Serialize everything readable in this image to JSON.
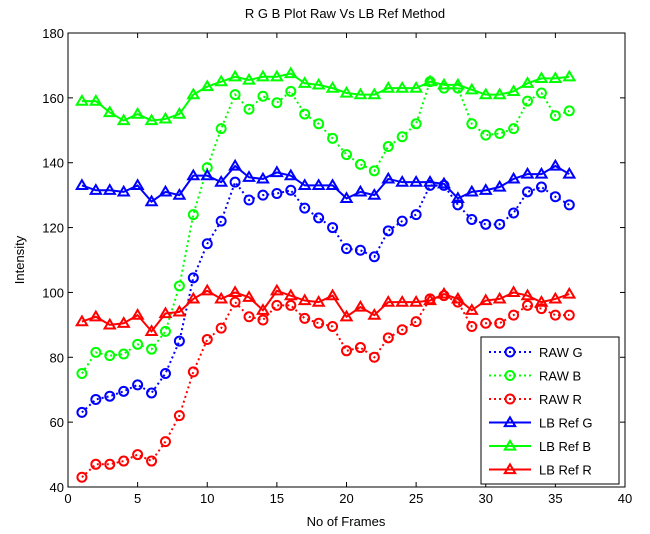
{
  "chart_data": {
    "type": "line",
    "title": "R G B Plot Raw Vs LB Ref Method",
    "xlabel": "No of Frames",
    "ylabel": "Intensity",
    "xlim": [
      0,
      40
    ],
    "ylim": [
      40,
      180
    ],
    "xticks": [
      0,
      5,
      10,
      15,
      20,
      25,
      30,
      35,
      40
    ],
    "yticks": [
      40,
      60,
      80,
      100,
      120,
      140,
      160,
      180
    ],
    "grid": false,
    "legend_position": "bottom-right",
    "x": [
      1,
      2,
      3,
      4,
      5,
      6,
      7,
      8,
      9,
      10,
      11,
      12,
      13,
      14,
      15,
      16,
      17,
      18,
      19,
      20,
      21,
      22,
      23,
      24,
      25,
      26,
      27,
      28,
      29,
      30,
      31,
      32,
      33,
      34,
      35,
      36
    ],
    "series": [
      {
        "name": "RAW G",
        "color": "#0000ff",
        "style": "dotted",
        "marker": "circle",
        "values": [
          63,
          67,
          68,
          69.5,
          71.5,
          69,
          75,
          85,
          104.5,
          115,
          122,
          134,
          128.5,
          130,
          130.5,
          131.5,
          126,
          123,
          120,
          113.5,
          113,
          111,
          119,
          122,
          124,
          133,
          133,
          127,
          122.5,
          121,
          121,
          124.5,
          131,
          132.5,
          129.5,
          127
        ]
      },
      {
        "name": "RAW B",
        "color": "#00ff00",
        "style": "dotted",
        "marker": "circle",
        "values": [
          75,
          81.5,
          80.5,
          81,
          84,
          82.5,
          88,
          102,
          124,
          138.5,
          150.5,
          161,
          156.5,
          160.5,
          158.5,
          162,
          155,
          152,
          147.5,
          142.5,
          139.5,
          137.5,
          145,
          148,
          152,
          165,
          163,
          163,
          152,
          148.5,
          149,
          150.5,
          159,
          161.5,
          154.5,
          156
        ]
      },
      {
        "name": "RAW R",
        "color": "#ff0000",
        "style": "dotted",
        "marker": "circle",
        "values": [
          43,
          47,
          47,
          48,
          50,
          48,
          54,
          62,
          75.5,
          85.5,
          89,
          97,
          92.5,
          91.5,
          96,
          96,
          92,
          90.5,
          89.5,
          82,
          83,
          80,
          86,
          88.5,
          91,
          98,
          99,
          97,
          89.5,
          90.5,
          90.5,
          93,
          96,
          95,
          93,
          93
        ]
      },
      {
        "name": "LB Ref G",
        "color": "#0000ff",
        "style": "solid",
        "marker": "triangle",
        "values": [
          133,
          131.5,
          131.5,
          131,
          133,
          128,
          131,
          130,
          136,
          136,
          134,
          139,
          135.5,
          135,
          137,
          136,
          133,
          133,
          133,
          129,
          131,
          130,
          135,
          134,
          134,
          134,
          133.5,
          129,
          131,
          131.5,
          132.5,
          135,
          136.5,
          136.5,
          139,
          136.5
        ]
      },
      {
        "name": "LB Ref B",
        "color": "#00ff00",
        "style": "solid",
        "marker": "triangle",
        "values": [
          159,
          159,
          155.5,
          153,
          155,
          153,
          153.5,
          155,
          161,
          163.5,
          165,
          166.5,
          165.5,
          166.5,
          166.5,
          167.5,
          164.5,
          164,
          163,
          161.5,
          161,
          161,
          163,
          163,
          163,
          165,
          164,
          164,
          162.5,
          161,
          161,
          162,
          164.5,
          166,
          166,
          166.5
        ]
      },
      {
        "name": "LB Ref R",
        "color": "#ff0000",
        "style": "solid",
        "marker": "triangle",
        "values": [
          91,
          92.5,
          90,
          90.5,
          93,
          88,
          93.5,
          94,
          98,
          100.5,
          98,
          100,
          98.5,
          94.5,
          100.5,
          99,
          97.5,
          97,
          99,
          92.5,
          95.5,
          93,
          97,
          97,
          97,
          97.5,
          99.5,
          98,
          94.5,
          97.5,
          98,
          100,
          99,
          97,
          98,
          99.5
        ]
      }
    ]
  }
}
